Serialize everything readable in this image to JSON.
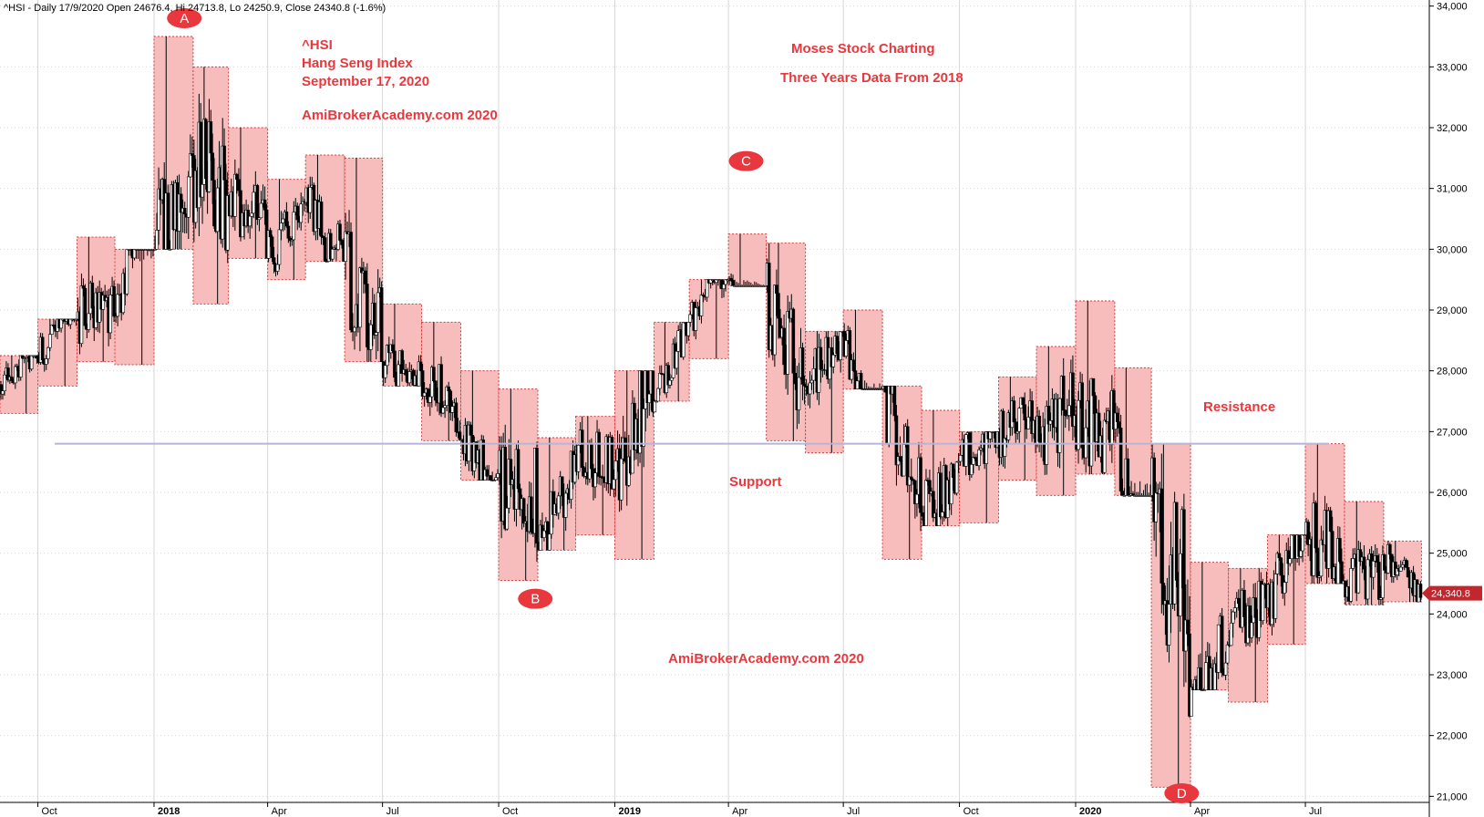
{
  "header": "^HSI - Daily 17/9/2020 Open 24676.4, Hi 24713.8, Lo 24250.9, Close 24340.8 (-1.6%)",
  "colors": {
    "box_fill": "#f7b9b9",
    "box_stroke": "#d93a3a",
    "annotation": "#e8383d",
    "support_line": "#b8b4d3",
    "price_tag": "#c0282d",
    "grid": "#d7d7d7"
  },
  "chart_data": {
    "type": "candlestick",
    "y_axis": {
      "range": [
        20900,
        34100
      ],
      "ticks": [
        21000,
        22000,
        23000,
        24000,
        25000,
        26000,
        27000,
        28000,
        29000,
        30000,
        31000,
        32000,
        33000,
        34000
      ],
      "tick_labels": [
        "21,000",
        "22,000",
        "23,000",
        "24,000",
        "25,000",
        "26,000",
        "27,000",
        "28,000",
        "29,000",
        "30,000",
        "31,000",
        "32,000",
        "33,000",
        "34,000"
      ]
    },
    "x_axis": {
      "range": [
        "2017-09-01",
        "2020-10-05"
      ],
      "ticks": [
        {
          "date": "2017-10-01",
          "label": "Oct",
          "bold": false
        },
        {
          "date": "2018-01-01",
          "label": "2018",
          "bold": true
        },
        {
          "date": "2018-04-01",
          "label": "Apr",
          "bold": false
        },
        {
          "date": "2018-07-01",
          "label": "Jul",
          "bold": false
        },
        {
          "date": "2018-10-01",
          "label": "Oct",
          "bold": false
        },
        {
          "date": "2019-01-01",
          "label": "2019",
          "bold": true
        },
        {
          "date": "2019-04-01",
          "label": "Apr",
          "bold": false
        },
        {
          "date": "2019-07-01",
          "label": "Jul",
          "bold": false
        },
        {
          "date": "2019-10-01",
          "label": "Oct",
          "bold": false
        },
        {
          "date": "2020-01-01",
          "label": "2020",
          "bold": true
        },
        {
          "date": "2020-04-01",
          "label": "Apr",
          "bold": false
        },
        {
          "date": "2020-07-01",
          "label": "Jul",
          "bold": false
        }
      ]
    },
    "monthly_ranges": [
      {
        "month": "2017-09",
        "high": 28250,
        "low": 27300
      },
      {
        "month": "2017-10",
        "high": 28850,
        "low": 27750
      },
      {
        "month": "2017-11",
        "high": 30200,
        "low": 28150
      },
      {
        "month": "2017-12",
        "high": 30000,
        "low": 28100
      },
      {
        "month": "2018-01",
        "high": 33500,
        "low": 30000
      },
      {
        "month": "2018-02",
        "high": 33000,
        "low": 29100
      },
      {
        "month": "2018-03",
        "high": 32000,
        "low": 29850
      },
      {
        "month": "2018-04",
        "high": 31150,
        "low": 29500
      },
      {
        "month": "2018-05",
        "high": 31550,
        "low": 29800
      },
      {
        "month": "2018-06",
        "high": 31500,
        "low": 28150
      },
      {
        "month": "2018-07",
        "high": 29100,
        "low": 27750
      },
      {
        "month": "2018-08",
        "high": 28800,
        "low": 26850
      },
      {
        "month": "2018-09",
        "high": 28000,
        "low": 26200
      },
      {
        "month": "2018-10",
        "high": 27700,
        "low": 24550
      },
      {
        "month": "2018-11",
        "high": 26900,
        "low": 25050
      },
      {
        "month": "2018-12",
        "high": 27250,
        "low": 25300
      },
      {
        "month": "2019-01",
        "high": 28000,
        "low": 24900
      },
      {
        "month": "2019-02",
        "high": 28800,
        "low": 27500
      },
      {
        "month": "2019-03",
        "high": 29500,
        "low": 28200
      },
      {
        "month": "2019-04",
        "high": 30250,
        "low": 29400
      },
      {
        "month": "2019-05",
        "high": 30100,
        "low": 26850
      },
      {
        "month": "2019-06",
        "high": 28650,
        "low": 26650
      },
      {
        "month": "2019-07",
        "high": 29000,
        "low": 27700
      },
      {
        "month": "2019-08",
        "high": 27750,
        "low": 24900
      },
      {
        "month": "2019-09",
        "high": 27350,
        "low": 25450
      },
      {
        "month": "2019-10",
        "high": 27000,
        "low": 25500
      },
      {
        "month": "2019-11",
        "high": 27900,
        "low": 26200
      },
      {
        "month": "2019-12",
        "high": 28400,
        "low": 25950
      },
      {
        "month": "2020-01",
        "high": 29150,
        "low": 26300
      },
      {
        "month": "2020-02",
        "high": 28050,
        "low": 25950
      },
      {
        "month": "2020-03",
        "high": 26800,
        "low": 21150
      },
      {
        "month": "2020-04",
        "high": 24850,
        "low": 22750
      },
      {
        "month": "2020-05",
        "high": 24750,
        "low": 22550
      },
      {
        "month": "2020-06",
        "high": 25300,
        "low": 23500
      },
      {
        "month": "2020-07",
        "high": 26800,
        "low": 24500
      },
      {
        "month": "2020-08",
        "high": 25850,
        "low": 24150
      },
      {
        "month": "2020-09",
        "high": 25200,
        "low": 24200
      }
    ],
    "support_resistance_level": 26800,
    "last_close": 24340.8,
    "last_close_label": "24,340.8",
    "markers": [
      {
        "label": "A",
        "date": "2018-01-25",
        "value": 33800
      },
      {
        "label": "B",
        "date": "2018-10-30",
        "value": 24250
      },
      {
        "label": "C",
        "date": "2019-04-15",
        "value": 31450
      },
      {
        "label": "D",
        "date": "2020-03-25",
        "value": 21050
      }
    ]
  },
  "annotations": {
    "symbol": "^HSI",
    "index_name": "Hang Seng Index",
    "date": "September 17, 2020",
    "website_top": "AmiBrokerAcademy.com  2020",
    "brand": "Moses Stock Charting",
    "period": "Three Years Data From 2018",
    "support": "Support",
    "resistance": "Resistance",
    "website_bottom": "AmiBrokerAcademy.com  2020"
  }
}
